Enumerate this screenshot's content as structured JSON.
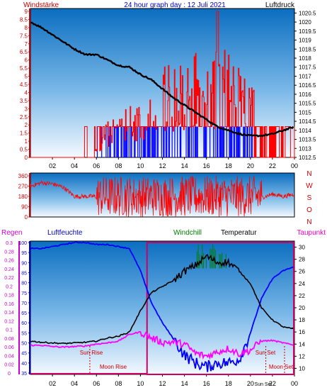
{
  "header": {
    "left": "Windstärke",
    "center": "24 hour graph day : 12 Juli 2021",
    "right": "Luftdruck"
  },
  "top_left_axis": [
    "9",
    "8.5",
    "8",
    "7.5",
    "7",
    "6.5",
    "6",
    "5.5",
    "5",
    "4.5",
    "4",
    "3.5",
    "3",
    "2.5",
    "2",
    "1.5",
    "1",
    "0.5",
    "0"
  ],
  "top_right_axis": [
    "1020.5",
    "1020",
    "1019.5",
    "1019",
    "1018.5",
    "1018",
    "1017.5",
    "1017",
    "1016.5",
    "1016",
    "1015.5",
    "1015",
    "1014.5",
    "1014",
    "1013.5",
    "1013",
    "1012.5"
  ],
  "x_ticks": [
    "02",
    "04",
    "06",
    "08",
    "10",
    "12",
    "14",
    "16",
    "18",
    "20",
    "22",
    "00"
  ],
  "wind_left_axis": [
    "360",
    "270",
    "180",
    "90",
    "0"
  ],
  "wind_right_labels": [
    "N",
    "W",
    "S",
    "O",
    "N"
  ],
  "bottom_header": {
    "regen": "Regen",
    "luftfeuchte": "Luftfeuchte",
    "windchill": "Windchill",
    "temperatur": "Temperatur",
    "taupunkt": "Taupunkt"
  },
  "rain_axis": [
    "0.3",
    "0.28",
    "0.26",
    "0.24",
    "0.22",
    "0.2",
    "0.18",
    "0.16",
    "0.14",
    "0.12",
    "0.1",
    "0.08",
    "0.06",
    "0.04",
    "0.02",
    "0"
  ],
  "humidity_axis": [
    "100",
    "95",
    "90",
    "85",
    "80",
    "75",
    "70",
    "65",
    "60",
    "55",
    "50",
    "45",
    "40",
    "35"
  ],
  "temp_axis": [
    "30",
    "28",
    "26",
    "24",
    "22",
    "20",
    "18",
    "16",
    "14",
    "12",
    "10"
  ],
  "events": {
    "sun_rise": "Sun Rise",
    "moon_rise": "Moon Rise",
    "sun_set": "Sun Set",
    "moon_set": "Moon Set",
    "sun_set_short": "Sun Set"
  },
  "colors": {
    "windspeed": "#ff0000",
    "gust": "#0000ff",
    "pressure": "#000000",
    "direction": "#ff0000",
    "humidity": "#0000ff",
    "temperature": "#000000",
    "dewpoint": "#ff00ff",
    "windchill": "#008000",
    "rain_box": "#cc0066",
    "bg_top": "#0a6fc0",
    "bg_bottom": "#f2f8ff"
  },
  "chart_data": [
    {
      "type": "line",
      "title": "24 hour graph day : 12 Juli 2021",
      "x_hours": [
        0,
        1,
        2,
        3,
        4,
        5,
        6,
        7,
        8,
        9,
        10,
        11,
        12,
        13,
        14,
        15,
        16,
        17,
        18,
        19,
        20,
        21,
        22,
        23,
        24
      ],
      "series": [
        {
          "name": "Luftdruck",
          "axis": "right",
          "values": [
            1020,
            1019.7,
            1019.3,
            1018.9,
            1018.5,
            1018.2,
            1018.2,
            1017.9,
            1017.6,
            1017.5,
            1017.1,
            1016.8,
            1016.3,
            1015.8,
            1015.4,
            1015,
            1014.6,
            1014.2,
            1014,
            1013.8,
            1013.7,
            1013.7,
            1013.8,
            1014,
            1014.2
          ]
        },
        {
          "name": "Windstärke",
          "axis": "left",
          "values": [
            0,
            0,
            0,
            0,
            0,
            0,
            0.5,
            2,
            2,
            3,
            3,
            4,
            5,
            5,
            5.5,
            5.5,
            5,
            6,
            5.5,
            5,
            4,
            3,
            2,
            2,
            2
          ]
        }
      ],
      "ylim_left": [
        0,
        9
      ],
      "ylim_right": [
        1012.5,
        1020.75
      ]
    },
    {
      "type": "scatter",
      "title": "",
      "x_hours": [
        0,
        1,
        2,
        3,
        4,
        5,
        6,
        7,
        8,
        9,
        10,
        11,
        12,
        13,
        14,
        15,
        16,
        17,
        18,
        19,
        20,
        21,
        22,
        23,
        24
      ],
      "series": [
        {
          "name": "",
          "values": [
            270,
            300,
            290,
            260,
            180,
            180,
            180,
            250,
            200,
            220,
            160,
            200,
            180,
            180,
            150,
            220,
            160,
            210,
            200,
            180,
            150,
            170,
            200,
            180,
            200
          ]
        }
      ],
      "ylim": [
        0,
        360
      ]
    },
    {
      "type": "line",
      "title": "",
      "x_hours": [
        0,
        1,
        2,
        3,
        4,
        5,
        6,
        7,
        8,
        9,
        10,
        11,
        12,
        13,
        14,
        15,
        16,
        17,
        18,
        19,
        20,
        21,
        22,
        23,
        24
      ],
      "series": [
        {
          "name": "Luftfeuchte",
          "axis": "humidity",
          "values": [
            97,
            97,
            98,
            99,
            100,
            100,
            99,
            99,
            98,
            97,
            86,
            70,
            60,
            52,
            44,
            40,
            38,
            40,
            40,
            42,
            55,
            72,
            82,
            86,
            88
          ]
        },
        {
          "name": "Temperatur",
          "axis": "temp",
          "values": [
            14.5,
            14.3,
            14.2,
            14.1,
            14.2,
            14.3,
            14.5,
            15,
            15.3,
            16,
            19.5,
            22.5,
            23.5,
            24.5,
            26,
            27,
            28.5,
            27.5,
            27.5,
            26,
            24,
            20,
            18,
            16.8,
            16.5
          ]
        },
        {
          "name": "Taupunkt",
          "axis": "temp",
          "values": [
            13.8,
            13.8,
            13.6,
            13.5,
            13.6,
            13.7,
            14,
            14.2,
            14.5,
            15.6,
            16,
            15,
            14.3,
            14.3,
            14,
            12.5,
            12,
            12.7,
            13.3,
            12.4,
            13,
            14.5,
            14.6,
            14.2,
            13.8
          ]
        },
        {
          "name": "Windchill",
          "axis": "temp",
          "values": [
            null,
            null,
            null,
            null,
            null,
            null,
            null,
            null,
            null,
            null,
            null,
            null,
            null,
            null,
            null,
            28.5,
            30,
            29,
            29.5,
            null,
            null,
            null,
            null,
            null,
            null
          ]
        }
      ],
      "ylim_humidity": [
        35,
        100
      ],
      "ylim_temp": [
        9,
        31
      ]
    }
  ]
}
